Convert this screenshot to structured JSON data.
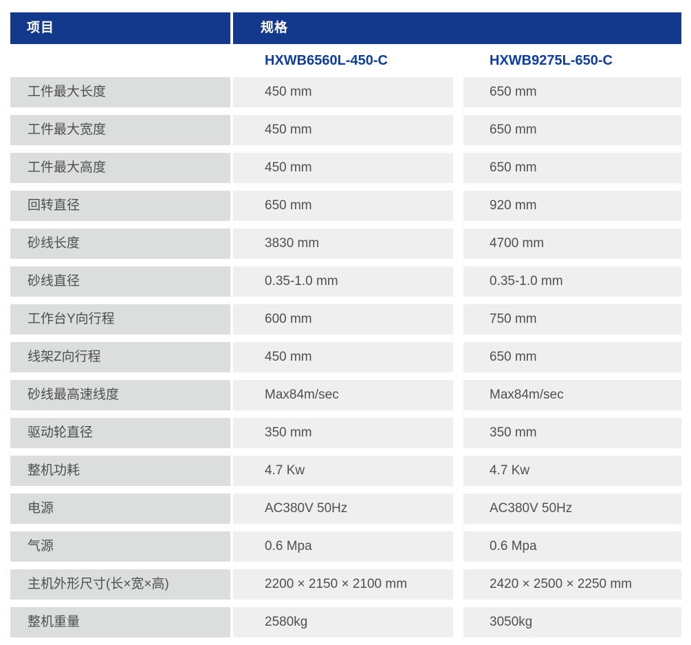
{
  "table": {
    "headers": {
      "item": "项目",
      "spec": "规格"
    },
    "models": [
      "HXWB6560L-450-C",
      "HXWB9275L-650-C"
    ],
    "rows": [
      {
        "label": "工件最大长度",
        "values": [
          "450 mm",
          "650 mm"
        ]
      },
      {
        "label": "工件最大宽度",
        "values": [
          "450 mm",
          "650 mm"
        ]
      },
      {
        "label": "工件最大高度",
        "values": [
          "450 mm",
          "650 mm"
        ]
      },
      {
        "label": "回转直径",
        "values": [
          "650 mm",
          "920 mm"
        ]
      },
      {
        "label": "砂线长度",
        "values": [
          "3830 mm",
          "4700 mm"
        ]
      },
      {
        "label": "砂线直径",
        "values": [
          "0.35-1.0 mm",
          "0.35-1.0 mm"
        ]
      },
      {
        "label": "工作台Y向行程",
        "values": [
          "600 mm",
          "750 mm"
        ]
      },
      {
        "label": "线架Z向行程",
        "values": [
          "450 mm",
          "650 mm"
        ]
      },
      {
        "label": "砂线最高速线度",
        "values": [
          "Max84m/sec",
          "Max84m/sec"
        ]
      },
      {
        "label": "驱动轮直径",
        "values": [
          "350 mm",
          "350 mm"
        ]
      },
      {
        "label": "整机功耗",
        "values": [
          "4.7 Kw",
          "4.7 Kw"
        ]
      },
      {
        "label": "电源",
        "values": [
          "AC380V 50Hz",
          "AC380V 50Hz"
        ]
      },
      {
        "label": "气源",
        "values": [
          "0.6 Mpa",
          "0.6 Mpa"
        ]
      },
      {
        "label": "主机外形尺寸(长×宽×高)",
        "values": [
          "2200 × 2150 × 2100 mm",
          "2420 × 2500 × 2250 mm"
        ]
      },
      {
        "label": "整机重量",
        "values": [
          "2580kg",
          "3050kg"
        ]
      }
    ]
  },
  "colors": {
    "header_bg": "#12398c",
    "header_text": "#ffffff",
    "model_text": "#0e3da0",
    "label_cell_bg": "#dcdddd",
    "value_cell_bg": "#efefef",
    "body_text": "#4f4f4f",
    "page_bg": "#ffffff"
  }
}
